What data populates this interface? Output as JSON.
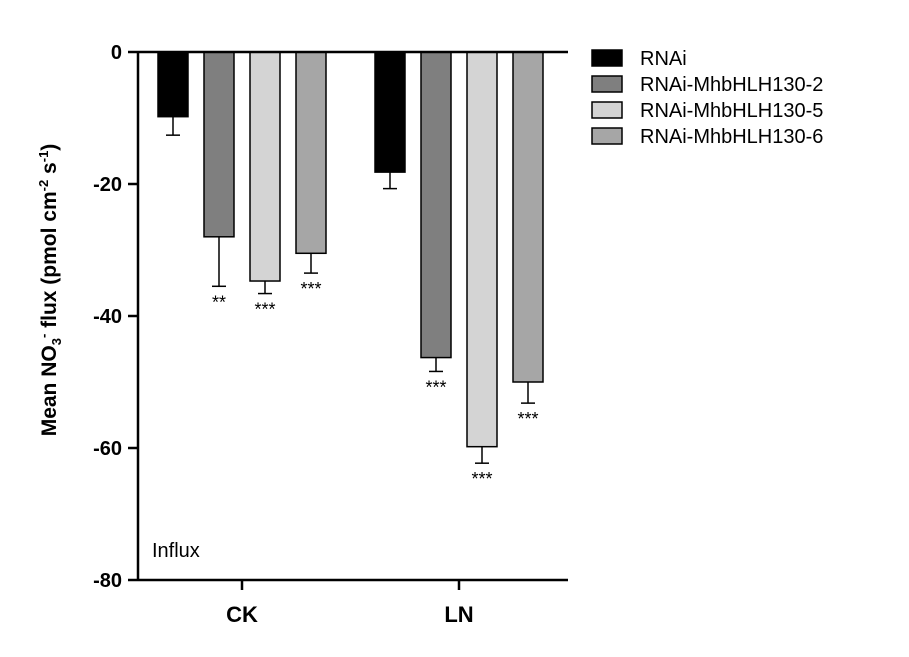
{
  "chart_data": {
    "type": "bar",
    "categories": [
      "CK",
      "LN"
    ],
    "series": [
      {
        "name": "RNAi",
        "values": [
          -9.8,
          -18.2
        ],
        "errors": [
          2.8,
          2.5
        ],
        "color": "#000000",
        "significance": [
          "",
          ""
        ]
      },
      {
        "name": "RNAi-MhbHLH130-2",
        "values": [
          -28.0,
          -46.3
        ],
        "errors": [
          7.5,
          2.1
        ],
        "color": "#7f7f7f",
        "significance": [
          "**",
          "***"
        ]
      },
      {
        "name": "RNAi-MhbHLH130-5",
        "values": [
          -34.7,
          -59.8
        ],
        "errors": [
          1.9,
          2.5
        ],
        "color": "#d4d4d4",
        "significance": [
          "***",
          "***"
        ]
      },
      {
        "name": "RNAi-MhbHLH130-6",
        "values": [
          -30.5,
          -50.0
        ],
        "errors": [
          3.0,
          3.2
        ],
        "color": "#a6a6a6",
        "significance": [
          "***",
          "***"
        ]
      }
    ],
    "ylabel": {
      "pre": "Mean NO",
      "sub": "3",
      "sup1": "-",
      "mid": " flux (pmol cm",
      "sup2": "-2",
      "sp": " s",
      "sup3": "-1",
      "post": ")"
    },
    "ylim": [
      -80,
      0
    ],
    "yticks": [
      0,
      -20,
      -40,
      -60,
      -80
    ],
    "ytick_labels": [
      "0",
      "-20",
      "-40",
      "-60",
      "-80"
    ],
    "annotation": "Influx",
    "legend_position": "top-right",
    "grid": false
  }
}
